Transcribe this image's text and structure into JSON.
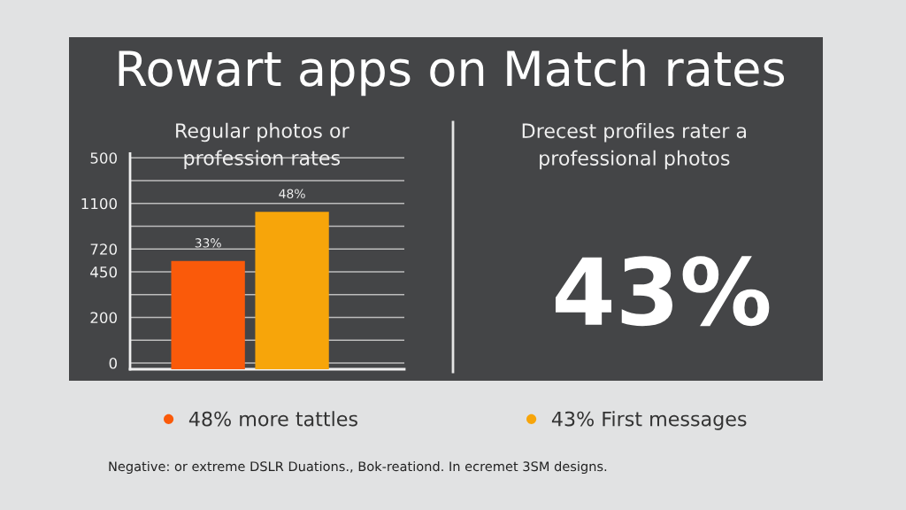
{
  "chart_data": [
    {
      "type": "bar",
      "title": "Rowart apps on Match rates",
      "subtitle": "Regular photos or profession rates",
      "categories": [
        null
      ],
      "y_categories": [
        "500",
        null,
        "1100",
        null,
        "720",
        "450",
        null,
        "200",
        null,
        "0"
      ],
      "series": [
        {
          "name": "48% more tattles",
          "color": "#fa5a0a",
          "values": [
            33
          ],
          "value_labels": [
            "33%"
          ]
        },
        {
          "name": "43% First messages",
          "color": "#f7a50a",
          "values": [
            48
          ],
          "value_labels": [
            "48%"
          ]
        }
      ],
      "grid": "y",
      "legend": "bottom",
      "tick_labels": "y",
      "annotations": [
        "Negative: or extreme DSLR Duations., Bok-reationd. In ecremet 3SM designs."
      ]
    },
    {
      "type": "other",
      "title": "Drecest profiles rater a professional photos",
      "annotations": [
        "43%"
      ]
    }
  ]
}
